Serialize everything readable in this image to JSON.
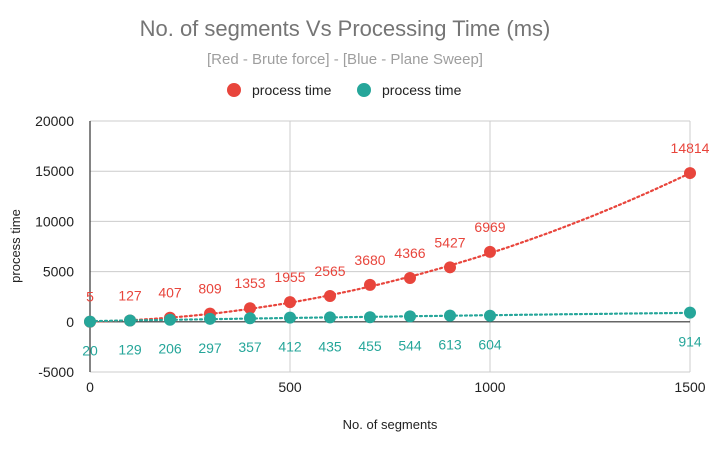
{
  "chart_data": {
    "type": "scatter",
    "title": "No. of segments Vs Processing Time (ms)",
    "subtitle": "[Red - Brute force] - [Blue - Plane Sweep]",
    "xlabel": "No. of segments",
    "ylabel": "process time",
    "xlim": [
      0,
      1500
    ],
    "ylim": [
      -5000,
      20000
    ],
    "xticks": [
      "0",
      "500",
      "1000",
      "1500"
    ],
    "yticks": [
      "-5000",
      "0",
      "5000",
      "10000",
      "15000",
      "20000"
    ],
    "grid": true,
    "legend_position": "top",
    "trendline": "dotted",
    "series": [
      {
        "name": "process time",
        "color": "#e8453c",
        "label_position": "above",
        "x": [
          0,
          100,
          200,
          300,
          400,
          500,
          600,
          700,
          800,
          900,
          1000,
          1500
        ],
        "values": [
          5,
          127,
          407,
          809,
          1353,
          1955,
          2565,
          3680,
          4366,
          5427,
          6969,
          14814
        ]
      },
      {
        "name": "process time",
        "color": "#26a69a",
        "label_position": "below",
        "x": [
          0,
          100,
          200,
          300,
          400,
          500,
          600,
          700,
          800,
          900,
          1000,
          1500
        ],
        "values": [
          20,
          129,
          206,
          297,
          357,
          412,
          435,
          455,
          544,
          613,
          604,
          914
        ]
      }
    ]
  }
}
